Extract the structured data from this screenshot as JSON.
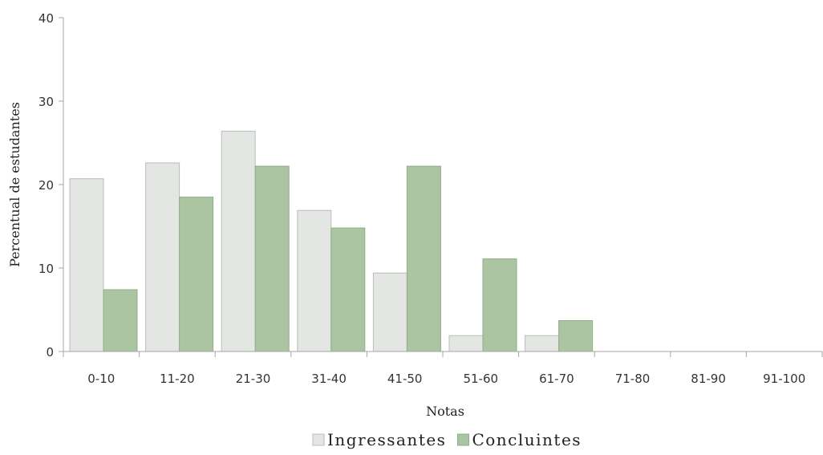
{
  "chart_data": {
    "type": "bar",
    "title": "",
    "xlabel": "Notas",
    "ylabel": "Percentual de estudantes",
    "ylim": [
      0,
      40
    ],
    "yticks": [
      0,
      10,
      20,
      30,
      40
    ],
    "grid": false,
    "legend_position": "bottom",
    "categories": [
      "0-10",
      "11-20",
      "21-30",
      "31-40",
      "41-50",
      "51-60",
      "61-70",
      "71-80",
      "81-90",
      "91-100"
    ],
    "series": [
      {
        "name": "Ingressantes",
        "color": "#e3e6e3",
        "stroke": "#b8bdb8",
        "values": [
          20.7,
          22.6,
          26.4,
          16.9,
          9.4,
          1.9,
          1.9,
          0,
          0,
          0
        ]
      },
      {
        "name": "Concluintes",
        "color": "#abc5a3",
        "stroke": "#8fae87",
        "values": [
          7.4,
          18.5,
          22.2,
          14.8,
          22.2,
          11.1,
          3.7,
          0,
          0,
          0
        ]
      }
    ]
  }
}
